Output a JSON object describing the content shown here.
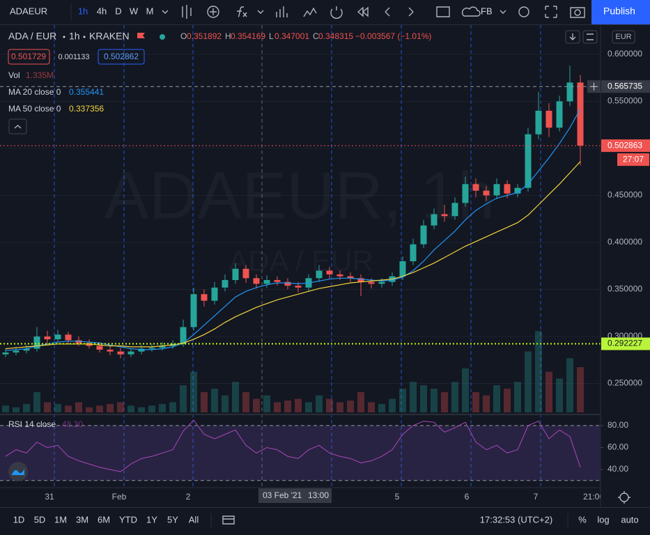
{
  "toolbar": {
    "symbol": "ADAEUR",
    "intervals": [
      "1h",
      "4h",
      "D",
      "W",
      "M"
    ],
    "layout": "FB",
    "publish": "Publish"
  },
  "legend": {
    "pair": "ADA / EUR",
    "interval": "1h",
    "exchange": "KRAKEN",
    "ohlc": [
      {
        "key": "O",
        "value": "0.351892"
      },
      {
        "key": "H",
        "value": "0.354169"
      },
      {
        "key": "L",
        "value": "0.347001"
      },
      {
        "key": "C",
        "value": "0.348315"
      }
    ],
    "change": "−0.003567 (−1.01%)",
    "sell": "0.501729",
    "spread": "0.001133",
    "buy": "0.502862",
    "volume_name": "Vol",
    "volume_last": "1.335M"
  },
  "currency": "EUR",
  "watermark": {
    "main": "ADAEUR, 1h",
    "sub": "ADA / EUR"
  },
  "chart_data": {
    "type": "candlestick",
    "ylim": [
      0.2193,
      0.6281
    ],
    "yticks": [
      {
        "value": 0.25,
        "label": "0.250000"
      },
      {
        "value": 0.3,
        "label": "0.300000"
      },
      {
        "value": 0.35,
        "label": "0.350000"
      },
      {
        "value": 0.4,
        "label": "0.400000"
      },
      {
        "value": 0.45,
        "label": "0.450000"
      },
      {
        "value": 0.5,
        "label": "0.500000"
      },
      {
        "value": 0.55,
        "label": "0.550000"
      },
      {
        "value": 0.6,
        "label": "0.600000"
      }
    ],
    "open": [
      0.281,
      0.283,
      0.285,
      0.287,
      0.3,
      0.297,
      0.302,
      0.296,
      0.293,
      0.29,
      0.286,
      0.284,
      0.281,
      0.284,
      0.287,
      0.288,
      0.29,
      0.292,
      0.31,
      0.345,
      0.338,
      0.352,
      0.36,
      0.372,
      0.362,
      0.356,
      0.36,
      0.358,
      0.354,
      0.352,
      0.362,
      0.37,
      0.366,
      0.364,
      0.362,
      0.358,
      0.356,
      0.358,
      0.364,
      0.38,
      0.398,
      0.418,
      0.43,
      0.428,
      0.442,
      0.462,
      0.455,
      0.45,
      0.462,
      0.452,
      0.458,
      0.515,
      0.54,
      0.522,
      0.55,
      0.57
    ],
    "high": [
      0.287,
      0.289,
      0.291,
      0.31,
      0.306,
      0.307,
      0.305,
      0.3,
      0.297,
      0.294,
      0.29,
      0.288,
      0.287,
      0.291,
      0.292,
      0.294,
      0.296,
      0.318,
      0.352,
      0.35,
      0.358,
      0.366,
      0.378,
      0.376,
      0.366,
      0.365,
      0.364,
      0.362,
      0.358,
      0.366,
      0.376,
      0.374,
      0.37,
      0.368,
      0.366,
      0.362,
      0.362,
      0.368,
      0.385,
      0.404,
      0.424,
      0.436,
      0.44,
      0.448,
      0.47,
      0.468,
      0.46,
      0.468,
      0.466,
      0.462,
      0.522,
      0.56,
      0.548,
      0.556,
      0.588,
      0.578
    ],
    "low": [
      0.278,
      0.28,
      0.282,
      0.284,
      0.292,
      0.294,
      0.292,
      0.29,
      0.287,
      0.283,
      0.28,
      0.277,
      0.278,
      0.281,
      0.284,
      0.285,
      0.287,
      0.289,
      0.306,
      0.332,
      0.334,
      0.348,
      0.356,
      0.357,
      0.351,
      0.352,
      0.354,
      0.35,
      0.347,
      0.348,
      0.358,
      0.361,
      0.36,
      0.358,
      0.343,
      0.351,
      0.352,
      0.354,
      0.36,
      0.376,
      0.394,
      0.414,
      0.422,
      0.424,
      0.438,
      0.448,
      0.444,
      0.446,
      0.447,
      0.448,
      0.454,
      0.51,
      0.512,
      0.518,
      0.545,
      0.482
    ],
    "close": [
      0.283,
      0.285,
      0.287,
      0.3,
      0.297,
      0.302,
      0.296,
      0.293,
      0.29,
      0.286,
      0.284,
      0.281,
      0.284,
      0.287,
      0.288,
      0.29,
      0.292,
      0.31,
      0.345,
      0.338,
      0.352,
      0.36,
      0.372,
      0.362,
      0.356,
      0.36,
      0.358,
      0.354,
      0.352,
      0.362,
      0.37,
      0.366,
      0.364,
      0.362,
      0.358,
      0.356,
      0.358,
      0.364,
      0.38,
      0.398,
      0.418,
      0.43,
      0.428,
      0.442,
      0.462,
      0.455,
      0.45,
      0.462,
      0.452,
      0.458,
      0.515,
      0.54,
      0.522,
      0.55,
      0.57,
      0.503
    ],
    "up_color": "#26a69a",
    "down_color": "#ef5350",
    "volume": [
      0.2,
      0.15,
      0.25,
      0.6,
      0.3,
      0.25,
      0.2,
      0.3,
      0.15,
      0.2,
      0.25,
      0.3,
      0.2,
      0.15,
      0.2,
      0.25,
      0.3,
      0.8,
      1.2,
      0.6,
      0.7,
      0.5,
      0.9,
      0.6,
      0.4,
      0.5,
      0.3,
      0.35,
      0.4,
      0.3,
      0.5,
      0.4,
      0.3,
      0.35,
      0.6,
      0.3,
      0.25,
      0.4,
      0.7,
      0.9,
      0.8,
      0.7,
      0.6,
      0.9,
      1.3,
      0.6,
      0.5,
      0.8,
      0.7,
      0.9,
      1.8,
      2.4,
      1.2,
      1.0,
      1.6,
      1.335
    ],
    "vlim": [
      0,
      6
    ],
    "ma_lines": [
      {
        "name": "MA 20 close 0",
        "last": "0.355441",
        "color": "#2196f3",
        "values": [
          0.285,
          0.286,
          0.287,
          0.29,
          0.292,
          0.294,
          0.295,
          0.295,
          0.294,
          0.293,
          0.291,
          0.289,
          0.287,
          0.286,
          0.286,
          0.287,
          0.289,
          0.293,
          0.302,
          0.312,
          0.322,
          0.332,
          0.342,
          0.348,
          0.352,
          0.355,
          0.357,
          0.357,
          0.356,
          0.357,
          0.359,
          0.361,
          0.362,
          0.362,
          0.361,
          0.36,
          0.359,
          0.36,
          0.363,
          0.37,
          0.38,
          0.392,
          0.402,
          0.412,
          0.424,
          0.434,
          0.441,
          0.447,
          0.45,
          0.453,
          0.462,
          0.476,
          0.49,
          0.505,
          0.522,
          0.542
        ]
      },
      {
        "name": "MA 50 close 0",
        "last": "0.337356",
        "color": "#f5d43b",
        "values": [
          0.287,
          0.288,
          0.289,
          0.29,
          0.291,
          0.292,
          0.292,
          0.292,
          0.292,
          0.291,
          0.29,
          0.29,
          0.289,
          0.289,
          0.289,
          0.29,
          0.291,
          0.293,
          0.297,
          0.302,
          0.308,
          0.315,
          0.321,
          0.326,
          0.331,
          0.335,
          0.339,
          0.342,
          0.345,
          0.348,
          0.351,
          0.353,
          0.355,
          0.357,
          0.358,
          0.359,
          0.36,
          0.361,
          0.364,
          0.368,
          0.373,
          0.378,
          0.384,
          0.39,
          0.396,
          0.401,
          0.406,
          0.411,
          0.416,
          0.421,
          0.429,
          0.44,
          0.451,
          0.462,
          0.474,
          0.486
        ]
      }
    ],
    "price_lines": [
      {
        "value": 0.565735,
        "label": "0.565735",
        "color": "#9598a1",
        "tag": "#363a45"
      },
      {
        "value": 0.502863,
        "label": "0.502863",
        "color": "#ef5350",
        "tag": "#ef5350",
        "countdown": "27:07"
      },
      {
        "value": 0.292227,
        "label": "0.292227",
        "color": "#c6ff00",
        "tag": "#b8f53a"
      }
    ]
  },
  "rsi": {
    "name": "RSI 14 close",
    "last": "48.30",
    "color": "#ab47bc",
    "ylim": [
      23.5,
      88.2
    ],
    "band": [
      30,
      80
    ],
    "yticks": [
      {
        "value": 40,
        "label": "40.00"
      },
      {
        "value": 60,
        "label": "60.00"
      },
      {
        "value": 80,
        "label": "80.00"
      }
    ],
    "values": [
      52,
      58,
      55,
      65,
      60,
      62,
      52,
      48,
      45,
      42,
      40,
      38,
      45,
      50,
      52,
      55,
      58,
      75,
      85,
      72,
      68,
      72,
      76,
      62,
      55,
      60,
      58,
      52,
      50,
      58,
      62,
      55,
      52,
      50,
      46,
      48,
      52,
      58,
      72,
      80,
      84,
      83,
      74,
      78,
      83,
      65,
      58,
      62,
      55,
      58,
      80,
      84,
      68,
      76,
      70,
      42
    ]
  },
  "time_axis": {
    "labels": [
      "31",
      "Feb",
      "2",
      "5",
      "6",
      "7",
      "21:00"
    ],
    "crosshair_date": "03 Feb '21",
    "crosshair_time": "13:00"
  },
  "bottom_bar": {
    "ranges": [
      "1D",
      "5D",
      "1M",
      "3M",
      "6M",
      "YTD",
      "1Y",
      "5Y",
      "All"
    ],
    "clock": "17:32:53 (UTC+2)",
    "percent": "%",
    "log": "log",
    "auto": "auto"
  }
}
